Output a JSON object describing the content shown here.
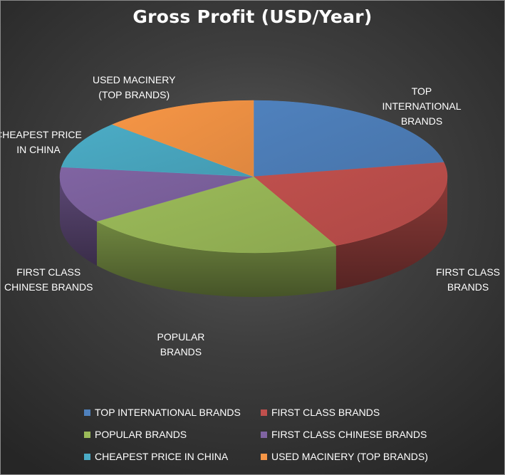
{
  "chart_data": {
    "type": "pie",
    "title": "Gross Profit (USD/Year)",
    "slices": [
      {
        "label": "TOP INTERNATIONAL BRANDS",
        "chart_label": "TOP\nINTERNATIONAL\nBRANDS",
        "value": 22,
        "color": "#4f81bd"
      },
      {
        "label": "FIRST CLASS BRANDS",
        "chart_label": "FIRST CLASS\nBRANDS",
        "value": 21,
        "color": "#c0504d"
      },
      {
        "label": "POPULAR BRANDS",
        "chart_label": "POPULAR\nBRANDS",
        "value": 22,
        "color": "#9bbb59"
      },
      {
        "label": "FIRST CLASS CHINESE BRANDS",
        "chart_label": "FIRST CLASS\nCHINESE BRANDS",
        "value": 12,
        "color": "#8064a2"
      },
      {
        "label": "CHEAPEST PRICE IN CHINA",
        "chart_label": "CHEAPEST PRICE\nIN CHINA",
        "value": 10,
        "color": "#4bacc6"
      },
      {
        "label": "USED MACINERY (TOP BRANDS)",
        "chart_label": "USED MACINERY\n(TOP BRANDS)",
        "value": 13,
        "color": "#f79646"
      }
    ],
    "legend_position": "bottom",
    "style": "3d"
  }
}
